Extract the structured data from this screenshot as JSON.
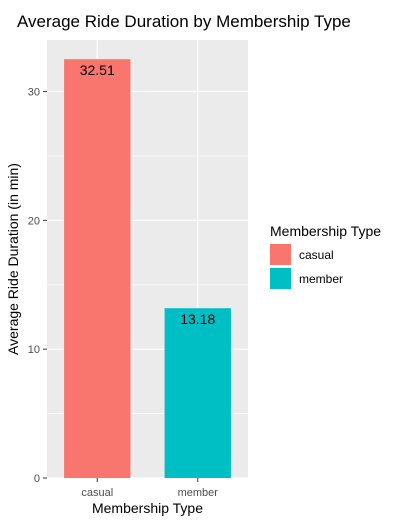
{
  "chart_data": {
    "type": "bar",
    "title": "Average Ride Duration by Membership Type",
    "xlabel": "Membership Type",
    "ylabel": "Average Ride Duration (in min)",
    "categories": [
      "casual",
      "member"
    ],
    "values": [
      32.51,
      13.18
    ],
    "data_labels": [
      "32.51",
      "13.18"
    ],
    "ylim": [
      0,
      34
    ],
    "yticks": [
      0,
      10,
      20,
      30
    ],
    "grid": true,
    "legend": {
      "title": "Membership Type",
      "position": "right",
      "entries": [
        "casual",
        "member"
      ]
    },
    "colors": [
      "#F8766D",
      "#00BFC4"
    ],
    "panel_background": "#EBEBEB"
  }
}
